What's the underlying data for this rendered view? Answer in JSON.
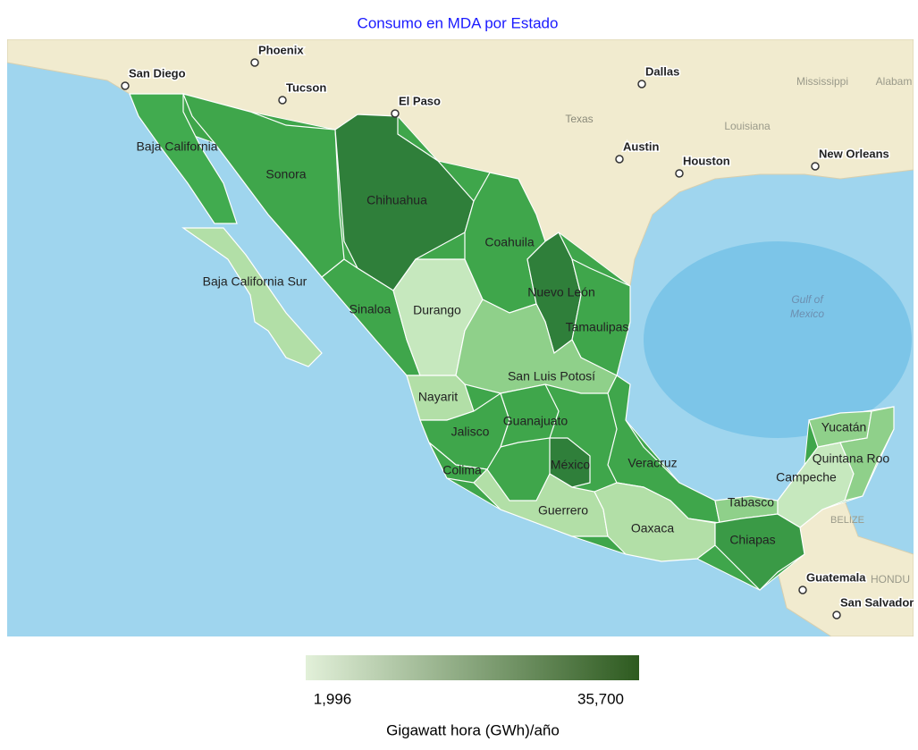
{
  "title": "Consumo en MDA por Estado",
  "states": [
    {
      "name": "Baja California",
      "color": "#41ab4f"
    },
    {
      "name": "Baja California Sur",
      "color": "#b2dfa7"
    },
    {
      "name": "Sonora",
      "color": "#3fa64b"
    },
    {
      "name": "Chihuahua",
      "color": "#2f7f3a"
    },
    {
      "name": "Sinaloa",
      "color": "#3fa64b"
    },
    {
      "name": "Durango",
      "color": "#c6e8be"
    },
    {
      "name": "Coahuila",
      "color": "#3fa64b"
    },
    {
      "name": "Nuevo León",
      "color": "#2f7f3a"
    },
    {
      "name": "Tamaulipas",
      "color": "#3fa64b"
    },
    {
      "name": "San Luis Potosí",
      "color": "#8fd08a"
    },
    {
      "name": "Nayarit",
      "color": "#b2dfa7"
    },
    {
      "name": "Jalisco",
      "color": "#3fa64b"
    },
    {
      "name": "Colima",
      "color": "#3fa64b"
    },
    {
      "name": "Guanajuato",
      "color": "#3fa64b"
    },
    {
      "name": "México",
      "color": "#2f7f3a"
    },
    {
      "name": "Guerrero",
      "color": "#b2dfa7"
    },
    {
      "name": "Veracruz",
      "color": "#3fa64b"
    },
    {
      "name": "Oaxaca",
      "color": "#b2dfa7"
    },
    {
      "name": "Tabasco",
      "color": "#8fd08a"
    },
    {
      "name": "Chiapas",
      "color": "#3a9a46"
    },
    {
      "name": "Campeche",
      "color": "#c6e8be"
    },
    {
      "name": "Yucatán",
      "color": "#8fd08a"
    },
    {
      "name": "Quintana Roo",
      "color": "#8fd08a"
    }
  ],
  "cities": [
    "San Diego",
    "Phoenix",
    "Tucson",
    "El Paso",
    "Dallas",
    "Austin",
    "Houston",
    "New Orleans",
    "Guatemala",
    "San Salvador"
  ],
  "region_labels": [
    "Texas",
    "Louisiana",
    "Mississippi",
    "Alabam",
    "Gulf of",
    "Mexico",
    "BELIZE",
    "HONDU"
  ],
  "legend": {
    "min": {
      "value": 1996,
      "label": "1,996"
    },
    "max": {
      "value": 35700,
      "label": "35,700"
    },
    "colors": [
      "#e2f0d9",
      "#2d5a1f"
    ],
    "title": "Gigawatt hora (GWh)/año"
  }
}
